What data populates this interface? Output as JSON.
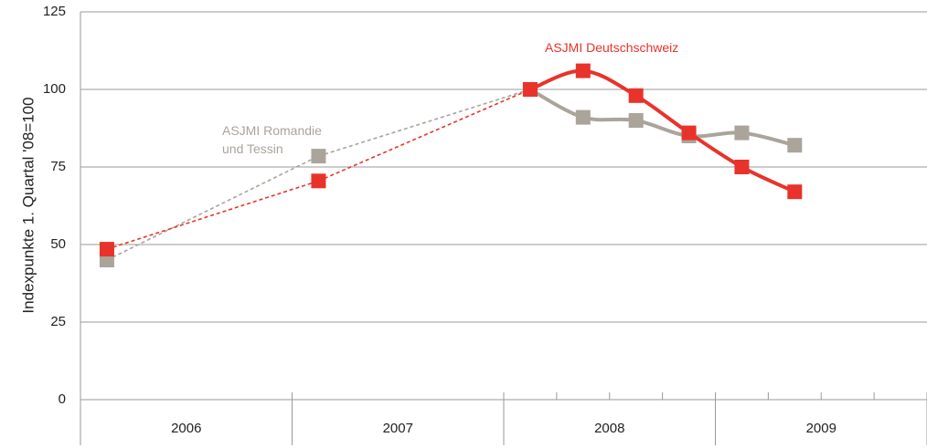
{
  "chart_data": {
    "type": "line",
    "y_label": "Indexpunkte 1. Quartal '08=100",
    "year_labels": [
      "2006",
      "2007",
      "2008",
      "2009"
    ],
    "xlim": [
      2006,
      2010
    ],
    "xticks": [
      2007,
      2008,
      2009,
      2010
    ],
    "minor_xticks": [
      2008.25,
      2008.5,
      2008.75,
      2009.25,
      2009.5,
      2009.75
    ],
    "ylim": [
      0,
      125
    ],
    "yticks": [
      0,
      25,
      50,
      75,
      100,
      125
    ],
    "grid": true,
    "x": [
      2006.125,
      2007.125,
      2008.125,
      2008.375,
      2008.625,
      2008.875,
      2009.125,
      2009.375
    ],
    "series": [
      {
        "name": "ASJMI Romandie und Tessin",
        "color": "#aaa49b",
        "values": [
          45,
          78.5,
          100,
          91,
          90,
          85,
          86,
          82
        ]
      },
      {
        "name": "ASJMI Deutschschweiz",
        "color": "#e8332a",
        "values": [
          48.5,
          70.5,
          100,
          106,
          98,
          86,
          75,
          67
        ]
      }
    ]
  }
}
